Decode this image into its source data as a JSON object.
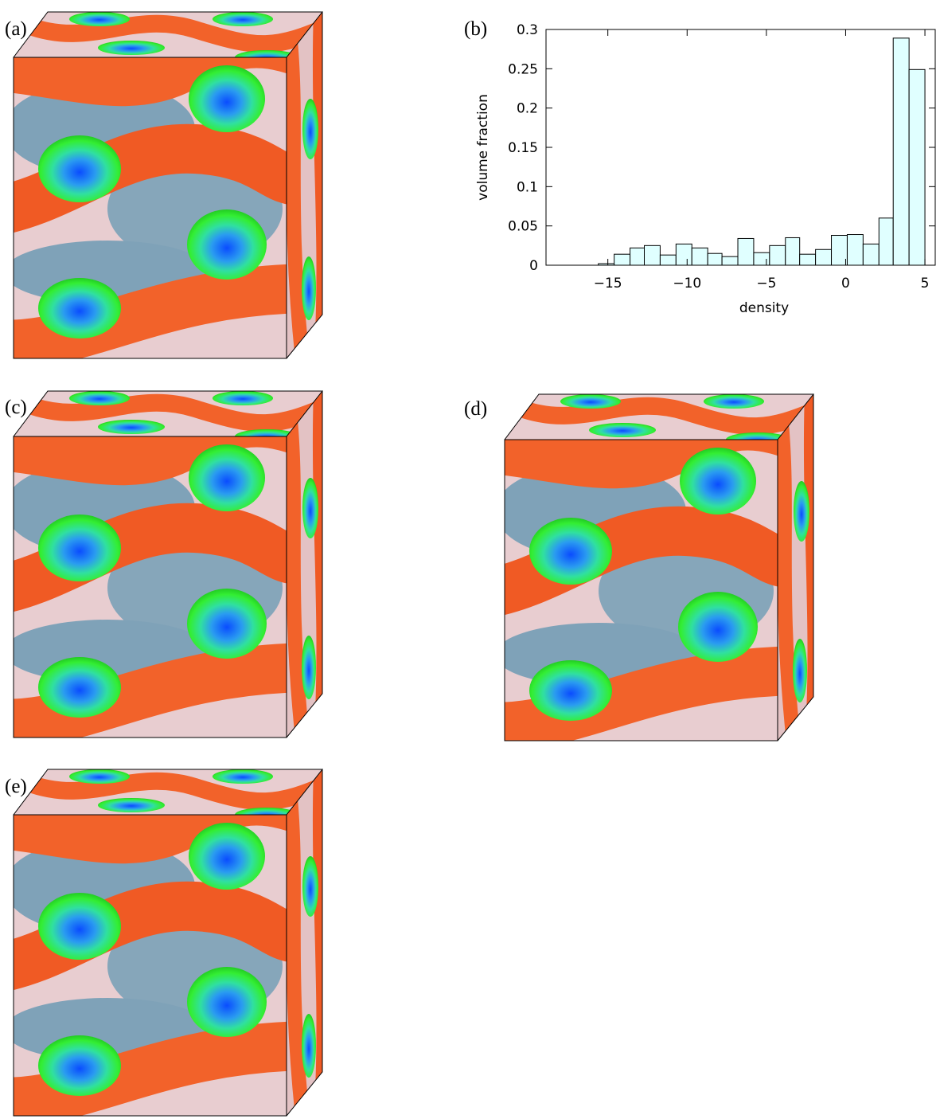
{
  "panel_labels": [
    "(a)",
    "(b)",
    "(c)",
    "(d)",
    "(e)"
  ],
  "chart_data": {
    "type": "histogram",
    "xlabel": "density",
    "ylabel": "volume fraction",
    "bins": [
      -15.6,
      -14.6,
      -13.6,
      -12.7,
      -11.7,
      -10.7,
      -9.7,
      -8.7,
      -7.8,
      -6.8,
      -5.8,
      -4.8,
      -3.8,
      -2.9,
      -1.9,
      -0.9,
      0.1,
      1.1,
      2.1,
      3.0,
      4.0,
      5.0
    ],
    "values": [
      0.002,
      0.014,
      0.022,
      0.025,
      0.013,
      0.027,
      0.022,
      0.015,
      0.011,
      0.034,
      0.016,
      0.025,
      0.035,
      0.014,
      0.02,
      0.038,
      0.039,
      0.027,
      0.06,
      0.289,
      0.249
    ],
    "color": "#e0ffff",
    "xlim": [
      -18.9,
      5.65
    ],
    "ylim": [
      0,
      0.3
    ],
    "xticks": [
      {
        "value": -15,
        "label": "−15"
      },
      {
        "value": -10,
        "label": "−10"
      },
      {
        "value": -5,
        "label": "−5"
      },
      0,
      5
    ],
    "yticks": [
      0,
      0.05,
      0.1,
      0.15,
      0.2,
      0.25,
      0.3
    ]
  }
}
